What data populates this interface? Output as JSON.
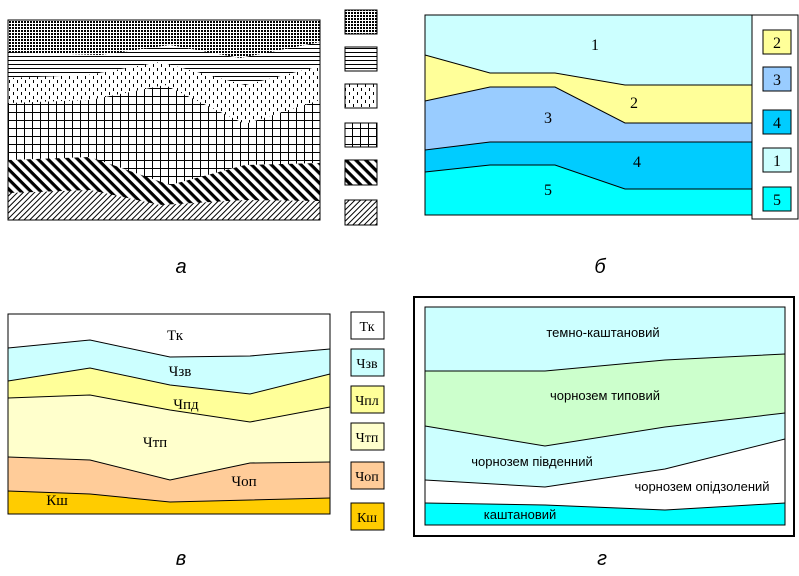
{
  "panels": {
    "a": {
      "caption": "а"
    },
    "b": {
      "caption": "б",
      "labels": [
        "1",
        "2",
        "3",
        "4",
        "5"
      ],
      "legend": [
        "2",
        "3",
        "4",
        "1",
        "5"
      ]
    },
    "v": {
      "caption": "в",
      "labels": [
        "Тк",
        "Чзв",
        "Чпд",
        "Чтп",
        "Чоп",
        "Кш"
      ],
      "legend": [
        "Тк",
        "Чзв",
        "Чпл",
        "Чтп",
        "Чоп",
        "Кш"
      ]
    },
    "g": {
      "caption": "г",
      "labels": [
        "темно-каштановий",
        "чорнозем типовий",
        "чорнозем південний",
        "чорнозем опідзолений",
        "каштановий"
      ]
    }
  },
  "colors": {
    "light_cyan": "#ccffff",
    "light_yellow": "#ffff99",
    "blue": "#99ccff",
    "cyan": "#00ccff",
    "turquoise": "#00ffff",
    "pale_yellow": "#ffffcc",
    "peach": "#ffcc99",
    "orange": "#ffcc00",
    "green": "#ccffcc",
    "black": "#000000"
  }
}
